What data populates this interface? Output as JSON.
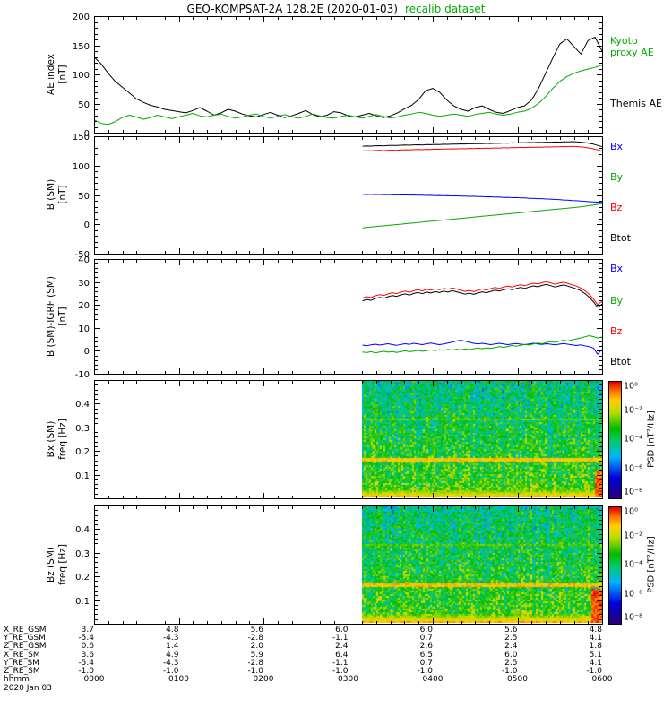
{
  "title": {
    "main": "GEO-KOMPSAT-2A 128.2E (2020-01-03)",
    "suffix": "recalib dataset"
  },
  "colors": {
    "title_suffix_green": "#00aa00",
    "series_blue": "#0000ff",
    "series_green": "#00aa00",
    "series_red": "#ff0000",
    "series_black": "#000000"
  },
  "ylabels": {
    "p1": [
      "AE index",
      "[nT]"
    ],
    "p2": [
      "B (SM)",
      "[nT]"
    ],
    "p3": [
      "B (SM)-IGRF (SM)",
      "[nT]"
    ],
    "p4": [
      "Bx (SM)",
      "freq [Hz]"
    ],
    "p5": [
      "Bz (SM)",
      "freq [Hz]"
    ]
  },
  "legends": {
    "p1": [
      {
        "lines": [
          "Kyoto",
          "proxy AE"
        ],
        "color": "#00aa00"
      },
      {
        "lines": [
          "Themis AE"
        ],
        "color": "#000000"
      }
    ],
    "p2": [
      {
        "text": "Bx",
        "color": "#0000ff"
      },
      {
        "text": "By",
        "color": "#00aa00"
      },
      {
        "text": "Bz",
        "color": "#ff0000"
      },
      {
        "text": "Btot",
        "color": "#000000"
      }
    ],
    "p3": [
      {
        "text": "Bx",
        "color": "#0000ff"
      },
      {
        "text": "By",
        "color": "#00aa00"
      },
      {
        "text": "Bz",
        "color": "#ff0000"
      },
      {
        "text": "Btot",
        "color": "#000000"
      }
    ]
  },
  "colorbar": {
    "label": "PSD [nT²/Hz]",
    "ticks": [
      "10⁰",
      "10⁻²",
      "10⁻⁴",
      "10⁻⁶",
      "10⁻⁸"
    ],
    "exponents": [
      0,
      -2,
      -4,
      -6,
      -8
    ]
  },
  "colormap": {
    "log_min": -8,
    "log_max": 0,
    "stops": [
      [
        0,
        "#2a0070"
      ],
      [
        0.18,
        "#0000e0"
      ],
      [
        0.36,
        "#00b4ff"
      ],
      [
        0.5,
        "#00cc66"
      ],
      [
        0.6,
        "#00bb00"
      ],
      [
        0.74,
        "#b8dd00"
      ],
      [
        0.84,
        "#ffd000"
      ],
      [
        0.92,
        "#ff7700"
      ],
      [
        1,
        "#e80000"
      ]
    ]
  },
  "footer": {
    "rows": [
      {
        "label": "X_RE_GSM",
        "values": [
          "3.7",
          "4.8",
          "5.6",
          "6.0",
          "6.0",
          "5.6",
          "4.8"
        ]
      },
      {
        "label": "Y_RE_GSM",
        "values": [
          "-5.4",
          "-4.3",
          "-2.8",
          "-1.1",
          "0.7",
          "2.5",
          "4.1"
        ]
      },
      {
        "label": "Z_RE_GSM",
        "values": [
          "0.6",
          "1.4",
          "2.0",
          "2.4",
          "2.6",
          "2.4",
          "1.8"
        ]
      },
      {
        "label": "X_RE_SM",
        "values": [
          "3.6",
          "4.9",
          "5.9",
          "6.4",
          "6.5",
          "6.0",
          "5.1"
        ]
      },
      {
        "label": "Y_RE_SM",
        "values": [
          "-5.4",
          "-4.3",
          "-2.8",
          "-1.1",
          "0.7",
          "2.5",
          "4.1"
        ]
      },
      {
        "label": "Z_RE_SM",
        "values": [
          "-1.0",
          "-1.0",
          "-1.0",
          "-1.0",
          "-1.0",
          "-1.0",
          "-1.0"
        ]
      }
    ],
    "time_label": "hhmm",
    "time_ticks": [
      "0000",
      "0100",
      "0200",
      "0300",
      "0400",
      "0500",
      "0600"
    ],
    "date": "2020 Jan 03"
  },
  "chart_data": [
    {
      "type": "line",
      "name": "AE index",
      "ylabel": "AE index [nT]",
      "xlim": [
        0,
        6
      ],
      "ylim": [
        0,
        200
      ],
      "yticks": [
        0,
        50,
        100,
        150,
        200
      ],
      "yminor": 10,
      "series": [
        {
          "name": "Themis AE",
          "color": "#000000",
          "x_start": 0,
          "x_step": 0.0833333,
          "values": [
            130,
            118,
            102,
            88,
            78,
            68,
            58,
            52,
            47,
            44,
            40,
            38,
            36,
            34,
            38,
            43,
            37,
            30,
            34,
            40,
            37,
            32,
            29,
            27,
            31,
            35,
            30,
            26,
            29,
            33,
            38,
            31,
            27,
            30,
            36,
            34,
            29,
            27,
            30,
            33,
            29,
            26,
            29,
            34,
            41,
            47,
            57,
            72,
            76,
            69,
            56,
            46,
            40,
            37,
            43,
            46,
            40,
            35,
            33,
            38,
            43,
            46,
            56,
            76,
            102,
            128,
            152,
            161,
            148,
            135,
            158,
            164,
            140
          ]
        },
        {
          "name": "Kyoto proxy AE",
          "color": "#00aa00",
          "x_start": 0,
          "x_step": 0.0833333,
          "values": [
            22,
            16,
            14,
            19,
            26,
            30,
            27,
            23,
            26,
            30,
            27,
            24,
            27,
            30,
            33,
            29,
            27,
            30,
            32,
            28,
            25,
            27,
            30,
            32,
            28,
            25,
            28,
            31,
            27,
            25,
            28,
            32,
            29,
            26,
            25,
            28,
            30,
            27,
            25,
            28,
            31,
            28,
            25,
            27,
            30,
            32,
            35,
            33,
            30,
            28,
            30,
            32,
            30,
            28,
            31,
            33,
            35,
            32,
            30,
            32,
            35,
            37,
            42,
            50,
            62,
            76,
            88,
            96,
            102,
            106,
            109,
            112,
            116
          ]
        }
      ]
    },
    {
      "type": "line",
      "name": "B (SM)",
      "ylabel": "B (SM) [nT]",
      "xlim": [
        0,
        6
      ],
      "ylim": [
        -50,
        150
      ],
      "yticks": [
        -50,
        0,
        50,
        100,
        150
      ],
      "yminor": 10,
      "series": [
        {
          "name": "Btot",
          "color": "#000000",
          "x_start": 3.17,
          "x_step": 0.0505,
          "values": [
            133.0,
            133.4,
            133.2,
            133.8,
            134.0,
            133.7,
            134.3,
            134.5,
            134.2,
            134.8,
            135.0,
            134.7,
            135.3,
            135.5,
            135.2,
            135.8,
            135.6,
            136.1,
            135.9,
            136.4,
            136.2,
            136.7,
            136.5,
            137.0,
            136.8,
            137.3,
            137.1,
            137.6,
            137.4,
            137.9,
            137.7,
            138.2,
            138.0,
            138.5,
            138.3,
            138.8,
            138.6,
            139.1,
            138.9,
            139.4,
            139.2,
            139.7,
            139.5,
            140.0,
            139.8,
            140.3,
            140.1,
            140.6,
            140.4,
            140.8,
            140.5,
            140.0,
            139.2,
            138.0,
            136.5,
            134.5,
            132.5
          ]
        },
        {
          "name": "Bz",
          "color": "#ff0000",
          "x_start": 3.17,
          "x_step": 0.0505,
          "values": [
            125.0,
            125.3,
            125.1,
            125.7,
            125.9,
            125.6,
            126.2,
            126.4,
            126.1,
            126.7,
            126.9,
            126.6,
            127.2,
            127.4,
            127.1,
            127.7,
            127.5,
            128.0,
            127.8,
            128.3,
            128.1,
            128.6,
            128.4,
            128.9,
            128.7,
            129.2,
            129.0,
            129.5,
            129.3,
            129.8,
            129.6,
            130.1,
            129.9,
            130.4,
            130.2,
            130.7,
            130.5,
            131.0,
            130.8,
            131.3,
            131.1,
            131.6,
            131.4,
            131.9,
            131.7,
            132.2,
            132.0,
            132.5,
            132.3,
            132.7,
            132.4,
            131.9,
            131.1,
            130.0,
            128.6,
            126.8,
            125.0
          ]
        },
        {
          "name": "Bx",
          "color": "#0000ff",
          "x_start": 3.17,
          "x_step": 0.0505,
          "values": [
            51.0,
            50.8,
            51.1,
            50.6,
            50.9,
            50.4,
            50.7,
            50.2,
            50.5,
            50.0,
            50.2,
            49.8,
            50.0,
            49.5,
            49.7,
            49.2,
            49.4,
            48.9,
            49.1,
            48.6,
            48.8,
            48.3,
            48.5,
            48.0,
            48.1,
            47.6,
            47.8,
            47.2,
            47.4,
            46.8,
            47.0,
            46.4,
            46.5,
            45.9,
            46.0,
            45.4,
            45.5,
            44.9,
            45.0,
            44.3,
            44.4,
            43.7,
            43.8,
            43.1,
            43.0,
            42.3,
            42.2,
            41.5,
            41.3,
            40.6,
            40.3,
            39.6,
            39.2,
            38.6,
            38.2,
            37.8,
            37.5
          ]
        },
        {
          "name": "By",
          "color": "#00aa00",
          "x_start": 3.17,
          "x_step": 0.0505,
          "values": [
            -6.0,
            -5.3,
            -4.6,
            -3.9,
            -3.2,
            -2.5,
            -1.8,
            -1.1,
            -0.4,
            0.3,
            1.0,
            1.7,
            2.4,
            3.1,
            3.8,
            4.5,
            5.2,
            5.9,
            6.6,
            7.3,
            8.0,
            8.7,
            9.4,
            10.1,
            10.8,
            11.5,
            12.2,
            12.9,
            13.6,
            14.3,
            15.0,
            15.7,
            16.4,
            17.1,
            17.8,
            18.5,
            19.2,
            19.9,
            20.6,
            21.3,
            22.0,
            22.7,
            23.4,
            24.1,
            24.8,
            25.5,
            26.2,
            26.9,
            27.6,
            28.3,
            29.0,
            29.8,
            30.7,
            31.7,
            32.8,
            34.0,
            35.0
          ]
        }
      ]
    },
    {
      "type": "line",
      "name": "B (SM)-IGRF (SM)",
      "ylabel": "B (SM)-IGRF (SM) [nT]",
      "xlim": [
        0,
        6
      ],
      "ylim": [
        -10,
        40
      ],
      "yticks": [
        -10,
        0,
        10,
        20,
        30,
        40
      ],
      "yminor": 2,
      "series": [
        {
          "name": "Btot",
          "color": "#000000",
          "x_start": 3.17,
          "x_step": 0.0505,
          "values": [
            21.8,
            22.4,
            22.0,
            22.8,
            23.3,
            22.9,
            23.6,
            24.1,
            23.7,
            24.4,
            24.8,
            24.3,
            25.0,
            25.4,
            24.9,
            25.6,
            25.2,
            25.8,
            25.4,
            26.0,
            25.6,
            26.2,
            25.7,
            25.2,
            24.7,
            25.1,
            24.6,
            25.2,
            25.7,
            25.3,
            25.9,
            26.4,
            26.0,
            26.6,
            27.0,
            26.6,
            27.2,
            27.6,
            27.2,
            27.8,
            28.3,
            27.9,
            28.5,
            28.9,
            28.4,
            27.8,
            28.3,
            28.7,
            28.2,
            27.6,
            27.0,
            26.2,
            25.0,
            23.4,
            21.4,
            19.0,
            20.3
          ]
        },
        {
          "name": "Bz",
          "color": "#ff0000",
          "x_start": 3.17,
          "x_step": 0.0505,
          "values": [
            23.0,
            23.6,
            23.2,
            24.0,
            24.5,
            24.1,
            24.8,
            25.3,
            24.9,
            25.6,
            26.0,
            25.5,
            26.2,
            26.6,
            26.1,
            26.8,
            26.4,
            27.0,
            26.6,
            27.2,
            26.8,
            27.4,
            26.9,
            26.4,
            25.9,
            26.3,
            25.8,
            26.4,
            26.9,
            26.5,
            27.1,
            27.6,
            27.2,
            27.8,
            28.2,
            27.8,
            28.4,
            28.8,
            28.4,
            29.0,
            29.5,
            29.1,
            29.7,
            30.1,
            29.6,
            29.0,
            29.5,
            29.9,
            29.4,
            28.8,
            28.2,
            27.4,
            26.2,
            24.6,
            22.6,
            20.2,
            21.5
          ]
        },
        {
          "name": "Bx",
          "color": "#0000ff",
          "x_start": 3.17,
          "x_step": 0.0505,
          "values": [
            2.5,
            2.2,
            2.6,
            2.9,
            2.5,
            2.8,
            3.1,
            2.7,
            2.4,
            2.8,
            3.1,
            2.8,
            3.3,
            3.0,
            2.7,
            3.1,
            3.4,
            3.0,
            2.7,
            3.0,
            3.4,
            3.8,
            4.3,
            4.6,
            4.2,
            3.7,
            3.3,
            3.0,
            3.3,
            3.0,
            2.7,
            3.0,
            3.3,
            3.0,
            2.7,
            3.0,
            3.2,
            2.9,
            2.7,
            3.0,
            3.3,
            3.0,
            2.8,
            3.1,
            2.9,
            2.6,
            2.9,
            3.2,
            2.9,
            2.6,
            2.3,
            2.6,
            2.2,
            1.8,
            1.2,
            -1.5,
            0.5
          ]
        },
        {
          "name": "By",
          "color": "#00aa00",
          "x_start": 3.17,
          "x_step": 0.0505,
          "values": [
            -0.5,
            -0.8,
            -0.4,
            -0.9,
            -0.5,
            -0.2,
            -0.6,
            -0.3,
            -0.7,
            -0.3,
            0.0,
            -0.4,
            -0.1,
            0.2,
            -0.2,
            0.1,
            0.4,
            0.1,
            0.5,
            0.2,
            0.6,
            0.3,
            0.7,
            0.4,
            0.8,
            0.5,
            0.9,
            1.2,
            0.9,
            1.3,
            1.0,
            1.4,
            1.8,
            1.5,
            1.9,
            2.3,
            2.0,
            2.4,
            2.8,
            2.5,
            3.0,
            3.4,
            3.1,
            3.6,
            4.0,
            3.7,
            4.2,
            4.6,
            4.3,
            4.8,
            5.2,
            5.6,
            6.1,
            6.6,
            6.2,
            5.6,
            6.0
          ]
        }
      ]
    },
    {
      "type": "heatmap",
      "name": "Bx (SM) PSD spectrogram",
      "ylabel": "Bx (SM) freq [Hz]",
      "xlim": [
        0,
        6
      ],
      "ylim": [
        0,
        0.5
      ],
      "yticks": [
        0.1,
        0.2,
        0.3,
        0.4
      ],
      "ytick_fmt": "f1",
      "yminor": 0.02,
      "t_start": 3.17,
      "t_end": 6.0,
      "base_log": -2.9,
      "freq_slope": -2.4,
      "noise": 1.35,
      "seed": 7,
      "zlabel": "PSD [nT²/Hz]",
      "zlim_log10": [
        -8,
        0
      ],
      "features": [
        {
          "type": "hline",
          "f": 0.165,
          "halfwidth": 0.007,
          "log": -1.25
        },
        {
          "type": "hline",
          "f": 0.335,
          "halfwidth": 0.004,
          "log": -2.6
        },
        {
          "type": "bottom",
          "f_max": 0.042,
          "log": -0.7
        },
        {
          "type": "burst",
          "t_min": 5.9,
          "f_max": 0.12,
          "log": -0.6
        }
      ]
    },
    {
      "type": "heatmap",
      "name": "Bz (SM) PSD spectrogram",
      "ylabel": "Bz (SM) freq [Hz]",
      "xlim": [
        0,
        6
      ],
      "ylim": [
        0,
        0.5
      ],
      "yticks": [
        0.1,
        0.2,
        0.3,
        0.4
      ],
      "ytick_fmt": "f1",
      "yminor": 0.02,
      "t_start": 3.17,
      "t_end": 6.0,
      "base_log": -2.9,
      "freq_slope": -2.4,
      "noise": 1.35,
      "seed": 13,
      "zlabel": "PSD [nT²/Hz]",
      "zlim_log10": [
        -8,
        0
      ],
      "features": [
        {
          "type": "hline",
          "f": 0.165,
          "halfwidth": 0.007,
          "log": -1.15
        },
        {
          "type": "hline",
          "f": 0.335,
          "halfwidth": 0.004,
          "log": -2.7
        },
        {
          "type": "bottom",
          "f_max": 0.045,
          "log": -0.6
        },
        {
          "type": "burst",
          "t_min": 5.87,
          "f_max": 0.15,
          "log": -0.5
        }
      ]
    }
  ]
}
